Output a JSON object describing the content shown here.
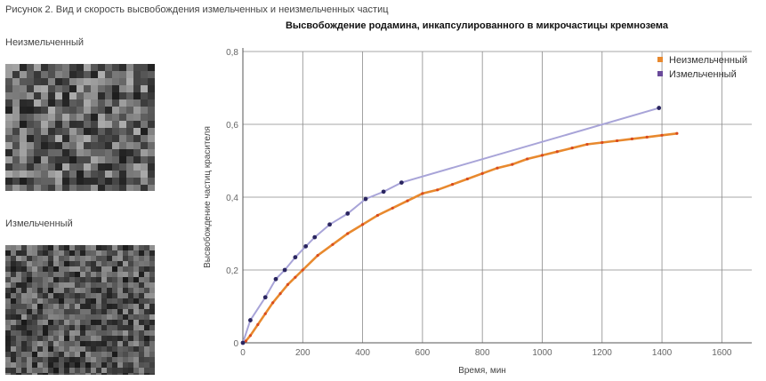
{
  "figure": {
    "caption": "Рисунок 2. Вид и скорость высвобождения измельченных и неизмельченных частиц",
    "panels": [
      {
        "label": "Неизмельченный"
      },
      {
        "label": "Измельченный"
      }
    ]
  },
  "chart_data": {
    "type": "line",
    "title": "Высвобождение родамина, инкапсулированного в микрочастицы кремнозема",
    "xlabel": "Время, мин",
    "ylabel": "Высвобождение частиц красителя",
    "xlim": [
      0,
      1700
    ],
    "ylim": [
      0,
      0.8
    ],
    "x_ticks": [
      "0",
      "200",
      "400",
      "600",
      "800",
      "1000",
      "1200",
      "1400",
      "1600"
    ],
    "y_ticks": [
      "0",
      "0,2",
      "0,4",
      "0,6",
      "0,8"
    ],
    "grid": true,
    "legend_position": "top-right",
    "series": [
      {
        "name": "Неизмельченный",
        "color": "#e8892e",
        "marker_color": "#d94a1f",
        "x": [
          10,
          25,
          50,
          75,
          100,
          125,
          150,
          175,
          200,
          250,
          300,
          350,
          400,
          450,
          500,
          550,
          600,
          650,
          700,
          750,
          800,
          850,
          900,
          950,
          1000,
          1050,
          1100,
          1150,
          1200,
          1250,
          1300,
          1350,
          1400,
          1450
        ],
        "values": [
          0.005,
          0.02,
          0.05,
          0.08,
          0.11,
          0.135,
          0.16,
          0.18,
          0.2,
          0.24,
          0.27,
          0.3,
          0.325,
          0.35,
          0.37,
          0.39,
          0.41,
          0.42,
          0.435,
          0.45,
          0.465,
          0.48,
          0.49,
          0.505,
          0.515,
          0.525,
          0.535,
          0.545,
          0.55,
          0.555,
          0.56,
          0.565,
          0.57,
          0.575
        ]
      },
      {
        "name": "Измельченный",
        "color": "#a8a4d8",
        "marker_color": "#2a2560",
        "x": [
          0,
          25,
          75,
          110,
          140,
          175,
          210,
          240,
          290,
          350,
          410,
          470,
          530,
          1390
        ],
        "values": [
          0.0,
          0.062,
          0.125,
          0.175,
          0.2,
          0.235,
          0.265,
          0.29,
          0.325,
          0.355,
          0.395,
          0.415,
          0.44,
          0.645
        ]
      }
    ]
  }
}
